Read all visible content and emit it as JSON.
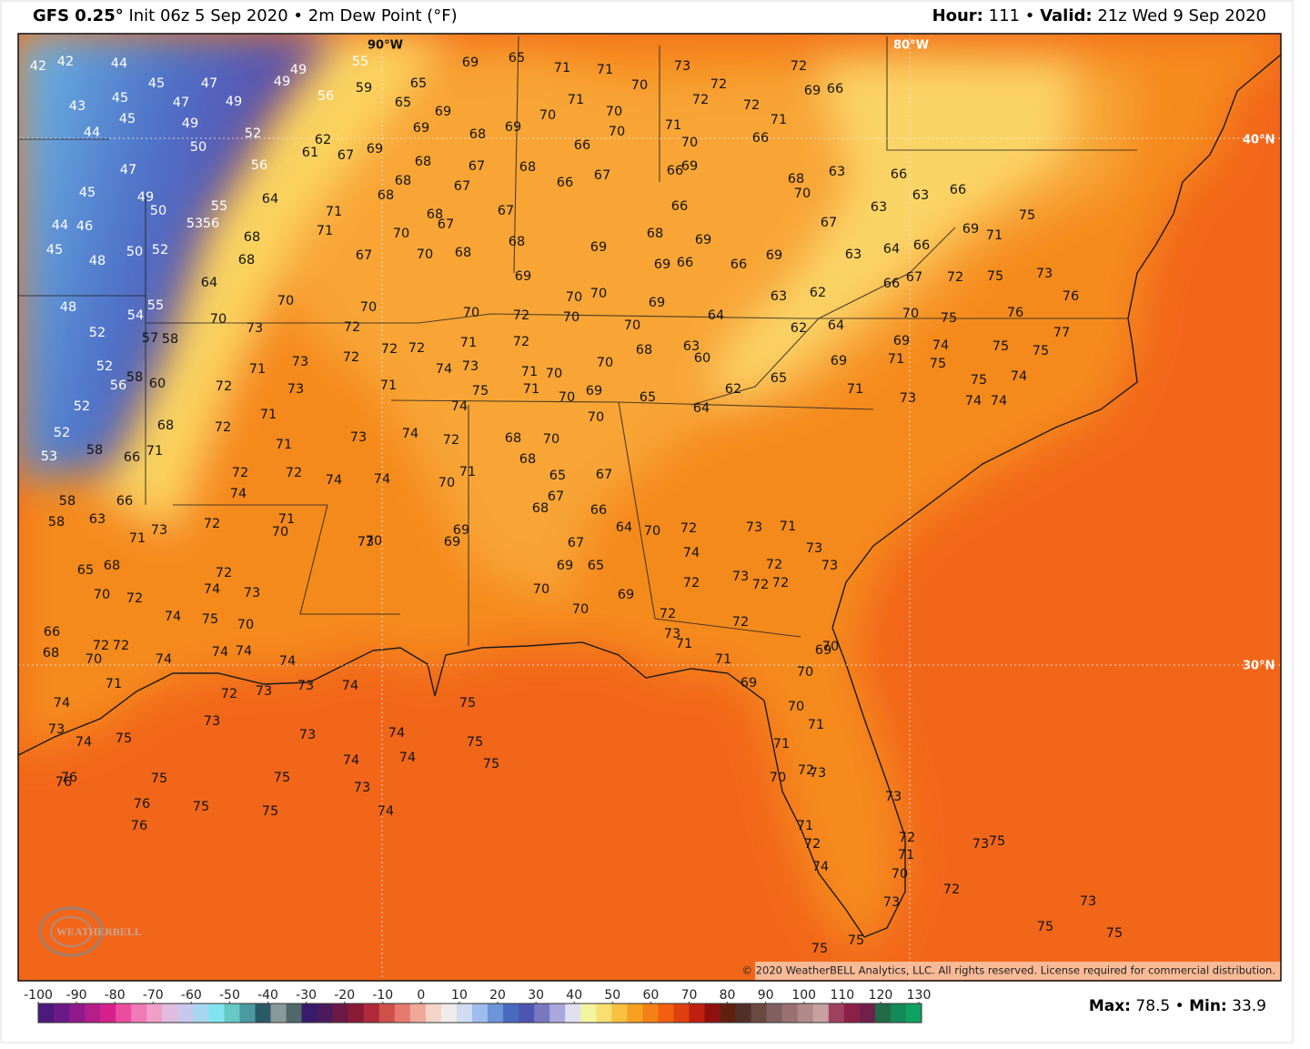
{
  "header": {
    "model": "GFS 0.25°",
    "init": "Init 06z 5 Sep 2020",
    "separator": "•",
    "field": "2m Dew Point (°F)",
    "hour_label": "Hour:",
    "hour": 111,
    "valid_label": "Valid:",
    "valid": "21z Wed 9 Sep 2020"
  },
  "map": {
    "grid_labels": [
      "90°W",
      "80°W",
      "40°N",
      "30°N"
    ],
    "stations": [
      42,
      42,
      44,
      45,
      47,
      49,
      49,
      45,
      47,
      49,
      43,
      45,
      49,
      44,
      52,
      50,
      47,
      56,
      45,
      49,
      50,
      55,
      53,
      56,
      64,
      44,
      46,
      45,
      48,
      50,
      52,
      68,
      68,
      64,
      70,
      48,
      55,
      54,
      52,
      70,
      57,
      58,
      52,
      56,
      58,
      60,
      52,
      68,
      52,
      71,
      58,
      66,
      53,
      58,
      66,
      58,
      63,
      71,
      73,
      65,
      68,
      70,
      72,
      66,
      68,
      72,
      72,
      70,
      74,
      71,
      74,
      73,
      74,
      75,
      76,
      76,
      75,
      76,
      75,
      76,
      75,
      75,
      73,
      72,
      73,
      73,
      74,
      73,
      74,
      74,
      74,
      75,
      75,
      75,
      74,
      73,
      74,
      74,
      74,
      74,
      75,
      70,
      72,
      74,
      73,
      72,
      71,
      70,
      72,
      74,
      72,
      71,
      71,
      72,
      72,
      71,
      73,
      73,
      73,
      72,
      72,
      70,
      71,
      71,
      67,
      70,
      70,
      68,
      68,
      67,
      68,
      68,
      68,
      67,
      67,
      68,
      69,
      69,
      65,
      65,
      59,
      55,
      56,
      62,
      61,
      67,
      69,
      69,
      65,
      71,
      71,
      70,
      71,
      70,
      70,
      70,
      69,
      68,
      66,
      66,
      67,
      67,
      68,
      69,
      68,
      69,
      69,
      69,
      66,
      66,
      69,
      70,
      70,
      69,
      73,
      72,
      72,
      72,
      71,
      72,
      69,
      66,
      71,
      70,
      66,
      66,
      69,
      66,
      68,
      70,
      63,
      67,
      63,
      66,
      63,
      66,
      69,
      71,
      75,
      73,
      75,
      72,
      67,
      66,
      64,
      66,
      63,
      62,
      63,
      70,
      75,
      76,
      76,
      77,
      75,
      75,
      74,
      75,
      69,
      71,
      75,
      74,
      74,
      74,
      69,
      71,
      73,
      65,
      62,
      64,
      65,
      62,
      64,
      64,
      63,
      60,
      70,
      68,
      70,
      70,
      69,
      71,
      70,
      71,
      75,
      72,
      72,
      70,
      70,
      71,
      74,
      73,
      72,
      72,
      71,
      74,
      74,
      72,
      73,
      74,
      74,
      70,
      71,
      68,
      70,
      68,
      70,
      65,
      67,
      67,
      68,
      66,
      69,
      69,
      73,
      70,
      64,
      70,
      72,
      67,
      69,
      65,
      74,
      70,
      69,
      70,
      72,
      73,
      72,
      72,
      72,
      73,
      71,
      73,
      73,
      72,
      73,
      71,
      72,
      71,
      69,
      70,
      69,
      70,
      70,
      71,
      71,
      72,
      73,
      70,
      71,
      72,
      74,
      73,
      72,
      71,
      70,
      73,
      75,
      75,
      72,
      75,
      73,
      73,
      75,
      75
    ]
  },
  "copyright": "© 2020 WeatherBELL Analytics, LLC. All rights reserved. License required for commercial distribution.",
  "logo": "WEATHERBELL",
  "colorbar": {
    "lim": [
      -100,
      130
    ],
    "ticks": [
      -100,
      -90,
      -80,
      -70,
      -60,
      -50,
      -40,
      -30,
      -20,
      -10,
      0,
      10,
      20,
      30,
      40,
      50,
      60,
      70,
      80,
      90,
      100,
      110,
      120,
      130
    ]
  },
  "stats": {
    "max_label": "Max:",
    "max": 78.5,
    "min_label": "Min:",
    "min": 33.9
  }
}
